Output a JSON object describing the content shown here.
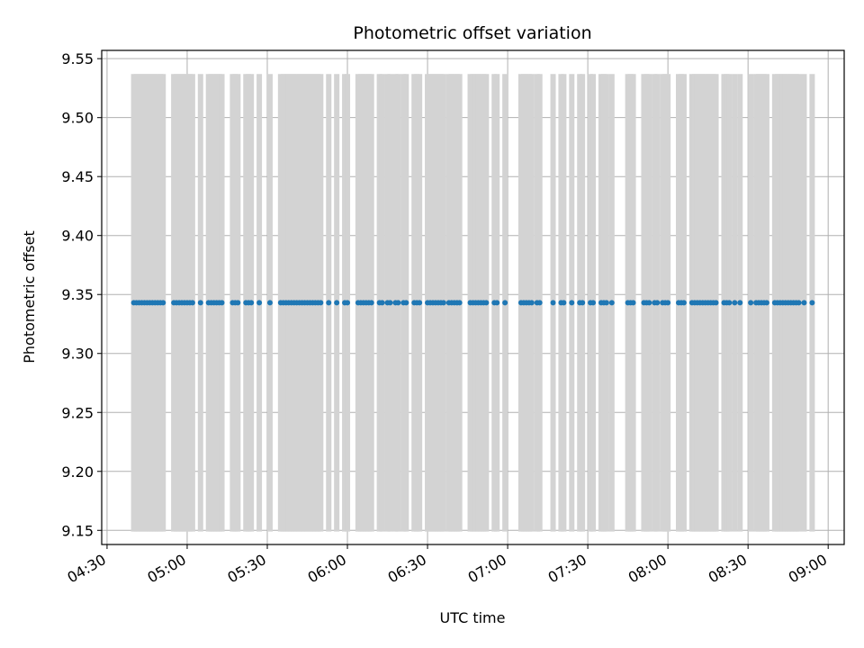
{
  "chart_data": {
    "type": "scatter",
    "title": "Photometric offset variation",
    "xlabel": "UTC time",
    "ylabel": "Photometric offset",
    "grid": true,
    "xlim": [
      "04:28",
      "09:06"
    ],
    "ylim": [
      9.138,
      9.557
    ],
    "x_ticks": [
      "04:30",
      "05:00",
      "05:30",
      "06:00",
      "06:30",
      "07:00",
      "07:30",
      "08:00",
      "08:30",
      "09:00"
    ],
    "y_ticks": [
      "9.15",
      "9.20",
      "9.25",
      "9.30",
      "9.35",
      "9.40",
      "9.45",
      "9.50",
      "9.55"
    ],
    "error_bar_range": [
      9.149,
      9.537
    ],
    "colors": {
      "points": "#1f77b4",
      "error_bars": "#d3d3d3",
      "grid": "#b0b0b0"
    },
    "series": [
      {
        "y": 9.343,
        "x": [
          "04:40",
          "04:41",
          "04:42",
          "04:43",
          "04:44",
          "04:45",
          "04:46",
          "04:47",
          "04:48",
          "04:49",
          "04:50",
          "04:51",
          "04:55",
          "04:56",
          "04:57",
          "04:58",
          "04:59",
          "05:00",
          "05:01",
          "05:02",
          "05:05",
          "05:08",
          "05:09",
          "05:10",
          "05:11",
          "05:12",
          "05:13",
          "05:17",
          "05:18",
          "05:19",
          "05:22",
          "05:23",
          "05:24",
          "05:27",
          "05:31",
          "05:35",
          "05:36",
          "05:37",
          "05:38",
          "05:39",
          "05:40",
          "05:41",
          "05:42",
          "05:43",
          "05:44",
          "05:45",
          "05:46",
          "05:47",
          "05:48",
          "05:49",
          "05:50",
          "05:53",
          "05:56",
          "05:59",
          "06:00",
          "06:04",
          "06:05",
          "06:06",
          "06:07",
          "06:08",
          "06:09",
          "06:12",
          "06:13",
          "06:15",
          "06:16",
          "06:18",
          "06:19",
          "06:21",
          "06:22",
          "06:25",
          "06:26",
          "06:27",
          "06:30",
          "06:31",
          "06:32",
          "06:33",
          "06:34",
          "06:35",
          "06:36",
          "06:38",
          "06:39",
          "06:40",
          "06:41",
          "06:42",
          "06:46",
          "06:47",
          "06:48",
          "06:49",
          "06:50",
          "06:51",
          "06:52",
          "06:55",
          "06:56",
          "06:59",
          "07:05",
          "07:06",
          "07:07",
          "07:08",
          "07:09",
          "07:11",
          "07:12",
          "07:17",
          "07:20",
          "07:21",
          "07:24",
          "07:27",
          "07:28",
          "07:31",
          "07:32",
          "07:35",
          "07:36",
          "07:37",
          "07:39",
          "07:45",
          "07:46",
          "07:47",
          "07:51",
          "07:52",
          "07:53",
          "07:55",
          "07:56",
          "07:58",
          "07:59",
          "08:00",
          "08:04",
          "08:05",
          "08:06",
          "08:09",
          "08:10",
          "08:11",
          "08:12",
          "08:13",
          "08:14",
          "08:15",
          "08:16",
          "08:17",
          "08:18",
          "08:21",
          "08:22",
          "08:23",
          "08:25",
          "08:27",
          "08:31",
          "08:33",
          "08:34",
          "08:35",
          "08:36",
          "08:37",
          "08:40",
          "08:41",
          "08:42",
          "08:43",
          "08:44",
          "08:45",
          "08:46",
          "08:47",
          "08:48",
          "08:49",
          "08:51",
          "08:54"
        ]
      }
    ]
  }
}
